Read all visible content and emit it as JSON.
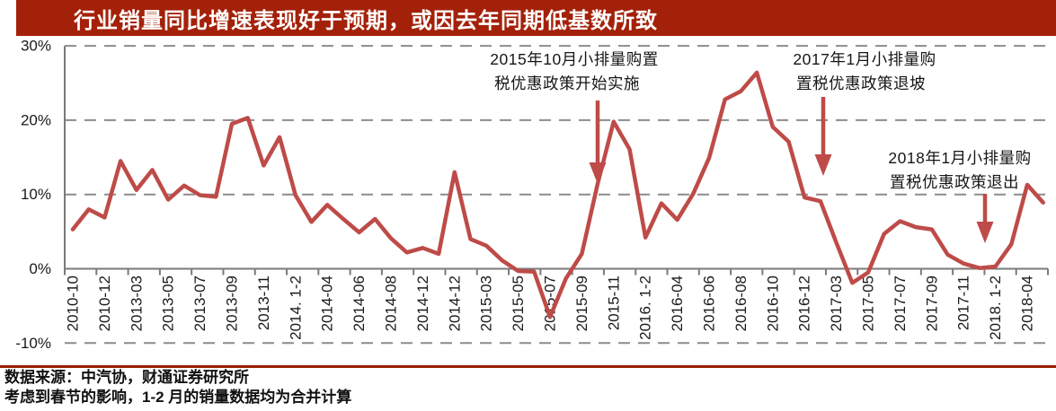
{
  "header": {
    "title": "行业销量同比增速表现好于预期，或因去年同期低基数所致"
  },
  "colors": {
    "title_bar_red": "#a42109",
    "series_red": "#be4b48",
    "footer_rule_red": "#9a1c03",
    "gridline_gray": "#8c8c8c",
    "axis_gray": "#7a7a7a"
  },
  "chart_data": {
    "type": "line",
    "title": "行业销量同比增速表现好于预期，或因去年同期低基数所致",
    "ylabel": "",
    "xlabel": "",
    "ylim": [
      -10,
      30
    ],
    "grid": "horizontal dashed",
    "legend": "none",
    "y_ticks": [
      30,
      20,
      10,
      0,
      -10
    ],
    "y_tick_labels": [
      "30%",
      "20%",
      "10%",
      "0%",
      "-10%"
    ],
    "x_tick_labels": [
      "2010-10",
      "2010-12",
      "2013-03",
      "2013-05",
      "2013-07",
      "2013-09",
      "2013-11",
      "2014. 1-2",
      "2014-04",
      "2014-06",
      "2014-08",
      "2014-12",
      "2014-12",
      "2015-03",
      "2015-05",
      "2015-07",
      "2015-09",
      "2015-11",
      "2016. 1-2",
      "2016-04",
      "2016-06",
      "2016-08",
      "2016-10",
      "2016-12",
      "2017-03",
      "2017-05",
      "2017-07",
      "2017-09",
      "2017-11",
      "2018. 1-2",
      "2018-04"
    ],
    "x_tick_labels_note": "one label under every second data point",
    "label_every_n_points": 2,
    "values": [
      5.3,
      8.0,
      6.9,
      14.5,
      10.6,
      13.3,
      9.3,
      11.2,
      9.9,
      9.7,
      19.5,
      20.3,
      13.9,
      17.7,
      9.9,
      6.3,
      8.6,
      6.7,
      4.9,
      6.7,
      4.1,
      2.2,
      2.8,
      2.0,
      13.0,
      4.0,
      3.1,
      1.1,
      -0.3,
      -0.4,
      -6.5,
      -1.3,
      2.0,
      11.5,
      19.8,
      16.1,
      4.2,
      8.8,
      6.6,
      10.1,
      14.9,
      22.8,
      23.9,
      26.4,
      19.1,
      17.1,
      9.6,
      9.1,
      3.5,
      -1.9,
      -0.5,
      4.7,
      6.4,
      5.6,
      5.3,
      1.9,
      0.7,
      0.1,
      0.3,
      3.3,
      11.3,
      8.9
    ],
    "annotations": [
      {
        "text_line1": "2015年10月小排量购置",
        "text_line2": "税优惠政策开始实施",
        "arrow_points_to": "2015-10"
      },
      {
        "text_line1": "2017年1月小排量购",
        "text_line2": "置税优惠政策退坡",
        "arrow_points_to": "2017. 1-2"
      },
      {
        "text_line1": "2018年1月小排量购",
        "text_line2": "置税优惠政策退出",
        "arrow_points_to": "2018. 1-2"
      }
    ]
  },
  "footer": {
    "source": "数据来源：中汽协，财通证券研究所",
    "note": "考虑到春节的影响，1-2 月的销量数据均为合并计算"
  }
}
